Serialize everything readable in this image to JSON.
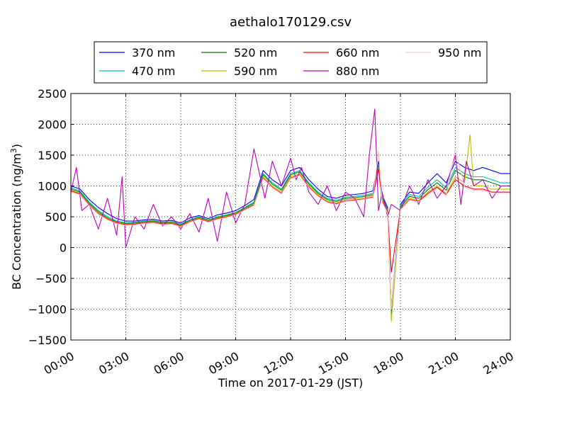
{
  "chart_data": {
    "type": "line",
    "title": "aethalo170129.csv",
    "xlabel": "Time on 2017-01-29 (JST)",
    "ylabel": "BC Concentration (ng/m",
    "ylabel_sup": "3",
    "ylabel_tail": ")",
    "x_unit": "hours",
    "xlim": [
      0,
      24
    ],
    "ylim": [
      -1500,
      2500
    ],
    "x_ticks": [
      0,
      3,
      6,
      9,
      12,
      15,
      18,
      21,
      24
    ],
    "x_tick_labels": [
      "00:00",
      "03:00",
      "06:00",
      "09:00",
      "12:00",
      "15:00",
      "18:00",
      "21:00",
      "24:00"
    ],
    "y_ticks": [
      -1500,
      -1000,
      -500,
      0,
      500,
      1000,
      1500,
      2000,
      2500
    ],
    "y_tick_labels": [
      "−1500",
      "−1000",
      "−500",
      "0",
      "500",
      "1000",
      "1500",
      "2000",
      "2500"
    ],
    "grid": true,
    "legend_position": "top-center",
    "series": [
      {
        "name": "370 nm",
        "color": "#0000ff",
        "x": [
          0,
          0.5,
          1,
          1.5,
          2,
          2.5,
          3,
          3.5,
          4,
          4.5,
          5,
          5.5,
          6,
          6.5,
          7,
          7.5,
          8,
          8.5,
          9,
          9.5,
          10,
          10.5,
          11,
          11.5,
          12,
          12.5,
          13,
          13.5,
          14,
          14.5,
          15,
          15.5,
          16,
          16.5,
          16.8,
          17,
          17.3,
          17.5,
          18,
          18.5,
          19,
          19.5,
          20,
          20.5,
          21,
          21.5,
          22,
          22.5,
          23,
          23.5,
          24
        ],
        "y": [
          1000,
          950,
          780,
          650,
          550,
          470,
          430,
          430,
          450,
          460,
          430,
          440,
          400,
          480,
          520,
          470,
          530,
          560,
          600,
          680,
          780,
          1250,
          1100,
          1000,
          1250,
          1300,
          1100,
          950,
          830,
          800,
          850,
          860,
          880,
          920,
          1400,
          850,
          650,
          -1000,
          700,
          900,
          880,
          1050,
          1200,
          1050,
          1400,
          1300,
          1250,
          1300,
          1250,
          1200,
          1200
        ]
      },
      {
        "name": "470 nm",
        "color": "#00bfbf",
        "x": [
          0,
          0.5,
          1,
          1.5,
          2,
          2.5,
          3,
          3.5,
          4,
          4.5,
          5,
          5.5,
          6,
          6.5,
          7,
          7.5,
          8,
          8.5,
          9,
          9.5,
          10,
          10.5,
          11,
          11.5,
          12,
          12.5,
          13,
          13.5,
          14,
          14.5,
          15,
          15.5,
          16,
          16.5,
          16.8,
          17,
          17.3,
          17.5,
          18,
          18.5,
          19,
          19.5,
          20,
          20.5,
          21,
          21.5,
          22,
          22.5,
          23,
          23.5,
          24
        ],
        "y": [
          970,
          920,
          740,
          600,
          500,
          430,
          400,
          410,
          430,
          440,
          410,
          420,
          380,
          450,
          500,
          450,
          500,
          530,
          570,
          650,
          740,
          1200,
          1050,
          950,
          1200,
          1250,
          1050,
          900,
          800,
          770,
          820,
          830,
          850,
          880,
          1350,
          820,
          620,
          -1050,
          680,
          860,
          830,
          980,
          1100,
          970,
          1300,
          1200,
          1150,
          1150,
          1100,
          1050,
          1050
        ]
      },
      {
        "name": "520 nm",
        "color": "#008000",
        "x": [
          0,
          0.5,
          1,
          1.5,
          2,
          2.5,
          3,
          3.5,
          4,
          4.5,
          5,
          5.5,
          6,
          6.5,
          7,
          7.5,
          8,
          8.5,
          9,
          9.5,
          10,
          10.5,
          11,
          11.5,
          12,
          12.5,
          13,
          13.5,
          14,
          14.5,
          15,
          15.5,
          16,
          16.5,
          16.8,
          17,
          17.3,
          17.5,
          18,
          18.5,
          19,
          19.5,
          20,
          20.5,
          21,
          21.5,
          22,
          22.5,
          23,
          23.5,
          24
        ],
        "y": [
          950,
          900,
          720,
          580,
          480,
          420,
          390,
          400,
          420,
          430,
          400,
          410,
          370,
          440,
          490,
          440,
          490,
          520,
          560,
          640,
          720,
          1180,
          1030,
          930,
          1180,
          1230,
          1030,
          880,
          780,
          750,
          800,
          810,
          830,
          860,
          1320,
          800,
          600,
          -1080,
          660,
          830,
          800,
          940,
          1050,
          930,
          1250,
          1150,
          1100,
          1100,
          1050,
          1000,
          1000
        ]
      },
      {
        "name": "590 nm",
        "color": "#bfbf00",
        "x": [
          0,
          0.5,
          1,
          1.5,
          2,
          2.5,
          3,
          3.5,
          4,
          4.5,
          5,
          5.5,
          6,
          6.5,
          7,
          7.5,
          8,
          8.5,
          9,
          9.5,
          10,
          10.5,
          11,
          11.5,
          12,
          12.5,
          13,
          13.5,
          14,
          14.5,
          15,
          15.5,
          16,
          16.5,
          16.8,
          17,
          17.3,
          17.5,
          18,
          18.5,
          19,
          19.5,
          20,
          20.5,
          21,
          21.5,
          21.8,
          22,
          22.5,
          23,
          23.5,
          24
        ],
        "y": [
          930,
          880,
          700,
          560,
          470,
          410,
          380,
          390,
          410,
          420,
          390,
          400,
          360,
          430,
          480,
          430,
          480,
          510,
          550,
          630,
          700,
          1150,
          1000,
          900,
          1150,
          1200,
          1000,
          860,
          760,
          730,
          780,
          790,
          810,
          840,
          1300,
          780,
          590,
          -1200,
          640,
          800,
          770,
          900,
          1000,
          880,
          1150,
          1050,
          1830,
          1000,
          1000,
          950,
          950,
          950
        ]
      },
      {
        "name": "660 nm",
        "color": "#ff0000",
        "x": [
          0,
          0.5,
          1,
          1.5,
          2,
          2.5,
          3,
          3.5,
          4,
          4.5,
          5,
          5.5,
          6,
          6.5,
          7,
          7.5,
          8,
          8.5,
          9,
          9.5,
          10,
          10.5,
          11,
          11.5,
          12,
          12.5,
          13,
          13.5,
          14,
          14.5,
          15,
          15.5,
          16,
          16.5,
          16.8,
          17,
          17.3,
          17.5,
          18,
          18.5,
          19,
          19.5,
          20,
          20.5,
          21,
          21.5,
          22,
          22.5,
          23,
          23.5,
          24
        ],
        "y": [
          920,
          870,
          690,
          550,
          460,
          400,
          370,
          380,
          400,
          410,
          380,
          390,
          350,
          420,
          470,
          420,
          470,
          500,
          540,
          620,
          690,
          1130,
          980,
          880,
          1130,
          1180,
          980,
          840,
          740,
          710,
          760,
          770,
          790,
          820,
          1280,
          760,
          580,
          -400,
          620,
          780,
          750,
          880,
          980,
          860,
          1100,
          1000,
          950,
          950,
          900,
          900,
          900
        ]
      },
      {
        "name": "880 nm",
        "color": "#bf00bf",
        "x": [
          0,
          0.3,
          0.6,
          1,
          1.5,
          2,
          2.5,
          2.8,
          3,
          3.5,
          4,
          4.5,
          5,
          5.5,
          6,
          6.5,
          7,
          7.5,
          8,
          8.5,
          9,
          9.5,
          10,
          10.3,
          10.6,
          11,
          11.5,
          12,
          12.3,
          12.6,
          13,
          13.5,
          14,
          14.5,
          15,
          15.5,
          16,
          16.3,
          16.6,
          16.8,
          17,
          17.3,
          17.5,
          18,
          18.5,
          19,
          19.5,
          20,
          20.5,
          21,
          21.3,
          21.6,
          22,
          22.5,
          23,
          23.5,
          24
        ],
        "y": [
          900,
          1300,
          600,
          700,
          300,
          800,
          200,
          1150,
          0,
          500,
          300,
          700,
          350,
          500,
          300,
          550,
          250,
          800,
          100,
          900,
          400,
          700,
          1600,
          1200,
          800,
          1400,
          1000,
          1450,
          1100,
          1300,
          900,
          700,
          1000,
          600,
          900,
          800,
          500,
          1500,
          2250,
          600,
          900,
          500,
          700,
          600,
          1000,
          700,
          1100,
          800,
          1000,
          1500,
          700,
          1400,
          1000,
          1100,
          800,
          1000,
          1000
        ]
      },
      {
        "name": "950 nm",
        "color": "#ffc0cb",
        "x": [
          0,
          0.5,
          1,
          1.5,
          2,
          2.5,
          3,
          3.5,
          4,
          4.5,
          5,
          5.5,
          6,
          6.5,
          7,
          7.5,
          8,
          8.5,
          9,
          9.5,
          10,
          10.5,
          11,
          11.5,
          12,
          12.5,
          13,
          13.5,
          14,
          14.5,
          15,
          15.5,
          16,
          16.5,
          16.8,
          17,
          17.3,
          17.5,
          18,
          18.5,
          19,
          19.5,
          20,
          20.5,
          21,
          21.5,
          22,
          22.5,
          23,
          23.5,
          24
        ],
        "y": [
          900,
          860,
          680,
          540,
          450,
          390,
          360,
          370,
          390,
          400,
          370,
          380,
          340,
          410,
          460,
          410,
          460,
          490,
          530,
          610,
          680,
          1120,
          970,
          870,
          1120,
          1170,
          970,
          830,
          730,
          700,
          750,
          760,
          780,
          810,
          1560,
          740,
          560,
          -1000,
          610,
          770,
          740,
          860,
          960,
          840,
          1600,
          980,
          930,
          930,
          880,
          880,
          880
        ]
      }
    ]
  }
}
